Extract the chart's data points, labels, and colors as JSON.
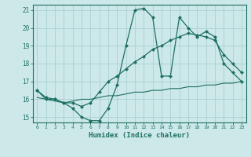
{
  "xlabel": "Humidex (Indice chaleur)",
  "background_color": "#cce8e8",
  "grid_color": "#aad0d0",
  "line_color": "#1e7060",
  "xlim": [
    -0.5,
    23.5
  ],
  "ylim": [
    14.7,
    21.3
  ],
  "yticks": [
    15,
    16,
    17,
    18,
    19,
    20,
    21
  ],
  "xticks": [
    0,
    1,
    2,
    3,
    4,
    5,
    6,
    7,
    8,
    9,
    10,
    11,
    12,
    13,
    14,
    15,
    16,
    17,
    18,
    19,
    20,
    21,
    22,
    23
  ],
  "line1_x": [
    0,
    1,
    2,
    3,
    4,
    5,
    6,
    7,
    8,
    9,
    10,
    11,
    12,
    13,
    14,
    15,
    16,
    17,
    18,
    19,
    20,
    21,
    22,
    23
  ],
  "line1_y": [
    16.5,
    16.0,
    16.0,
    15.8,
    15.5,
    15.0,
    14.8,
    14.8,
    15.5,
    16.8,
    19.0,
    21.0,
    21.1,
    20.6,
    17.3,
    17.3,
    20.6,
    20.0,
    19.5,
    19.8,
    19.5,
    18.0,
    17.5,
    17.0
  ],
  "line2_x": [
    0,
    1,
    2,
    3,
    4,
    5,
    6,
    7,
    8,
    9,
    10,
    11,
    12,
    13,
    14,
    15,
    16,
    17,
    18,
    19,
    20,
    21,
    22,
    23
  ],
  "line2_y": [
    16.5,
    16.1,
    16.0,
    15.8,
    15.8,
    15.6,
    15.8,
    16.4,
    17.0,
    17.3,
    17.7,
    18.1,
    18.4,
    18.8,
    19.0,
    19.3,
    19.5,
    19.7,
    19.6,
    19.5,
    19.3,
    18.5,
    18.0,
    17.5
  ],
  "line3_x": [
    0,
    1,
    2,
    3,
    4,
    5,
    6,
    7,
    8,
    9,
    10,
    11,
    12,
    13,
    14,
    15,
    16,
    17,
    18,
    19,
    20,
    21,
    22,
    23
  ],
  "line3_y": [
    16.1,
    16.0,
    15.9,
    15.8,
    15.9,
    16.0,
    16.0,
    16.1,
    16.2,
    16.2,
    16.3,
    16.4,
    16.4,
    16.5,
    16.5,
    16.6,
    16.6,
    16.7,
    16.7,
    16.8,
    16.8,
    16.9,
    16.9,
    17.0
  ]
}
